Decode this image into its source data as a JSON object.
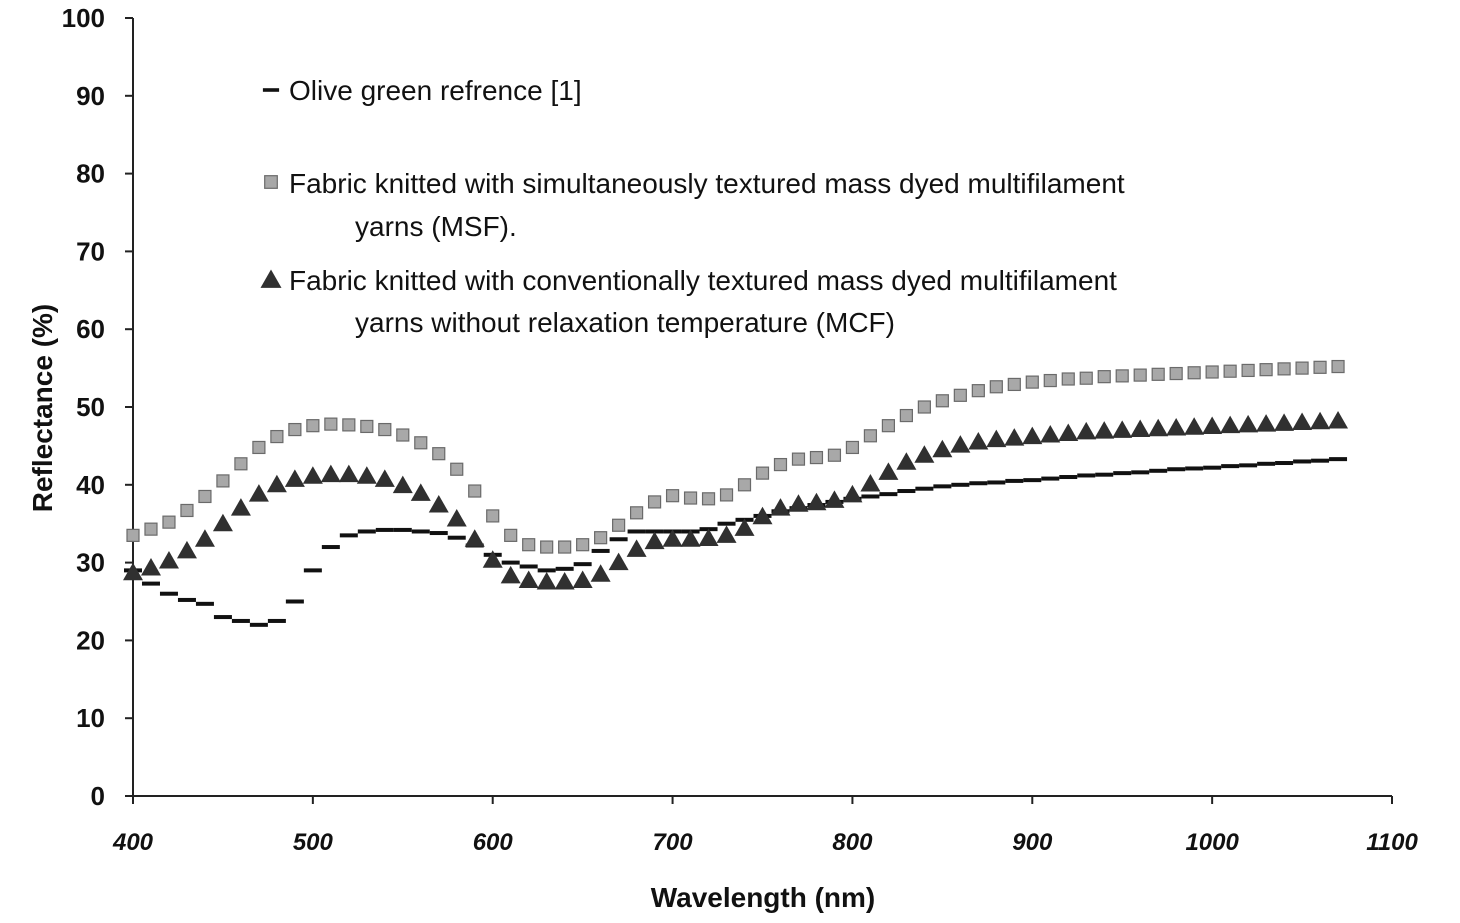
{
  "chart_data": {
    "type": "scatter",
    "xlabel": "Wavelength (nm)",
    "ylabel": "Reflectance (%)",
    "xlim": [
      400,
      1100
    ],
    "ylim": [
      0,
      100
    ],
    "xticks": [
      400,
      500,
      600,
      700,
      800,
      900,
      1000,
      1100
    ],
    "yticks": [
      0,
      10,
      20,
      30,
      40,
      50,
      60,
      70,
      80,
      90,
      100
    ],
    "grid": false,
    "legend_position": "top-left inside plot",
    "series": [
      {
        "name": "Olive green refrence [1]",
        "legend_lines": [
          "Olive green refrence [1]"
        ],
        "marker": "dash",
        "color": "#111111",
        "x": [
          400,
          410,
          420,
          430,
          440,
          450,
          460,
          470,
          480,
          490,
          500,
          510,
          520,
          530,
          540,
          550,
          560,
          570,
          580,
          590,
          600,
          610,
          620,
          630,
          640,
          650,
          660,
          670,
          680,
          690,
          700,
          710,
          720,
          730,
          740,
          750,
          760,
          770,
          780,
          790,
          800,
          810,
          820,
          830,
          840,
          850,
          860,
          870,
          880,
          890,
          900,
          910,
          920,
          930,
          940,
          950,
          960,
          970,
          980,
          990,
          1000,
          1010,
          1020,
          1030,
          1040,
          1050,
          1060,
          1070
        ],
        "y": [
          29,
          27.3,
          26,
          25.2,
          24.7,
          23,
          22.5,
          22,
          22.5,
          25,
          29,
          32,
          33.5,
          34,
          34.2,
          34.2,
          34,
          33.8,
          33.2,
          32.2,
          31,
          30,
          29.5,
          29,
          29.2,
          29.8,
          31.5,
          33,
          34,
          34,
          34,
          34,
          34.3,
          35,
          35.5,
          36,
          36.6,
          37,
          37.4,
          37.8,
          38.2,
          38.5,
          38.8,
          39.2,
          39.5,
          39.8,
          40,
          40.2,
          40.3,
          40.5,
          40.6,
          40.8,
          41,
          41.2,
          41.3,
          41.5,
          41.6,
          41.8,
          42,
          42.1,
          42.2,
          42.4,
          42.5,
          42.7,
          42.8,
          43,
          43.1,
          43.3
        ]
      },
      {
        "name": "Fabric knitted with simultaneously textured mass dyed multifilament yarns (MSF).",
        "legend_lines": [
          "Fabric knitted with simultaneously textured mass dyed multifilament",
          "yarns (MSF)."
        ],
        "marker": "square",
        "color": "#a8a8a8",
        "x": [
          400,
          410,
          420,
          430,
          440,
          450,
          460,
          470,
          480,
          490,
          500,
          510,
          520,
          530,
          540,
          550,
          560,
          570,
          580,
          590,
          600,
          610,
          620,
          630,
          640,
          650,
          660,
          670,
          680,
          690,
          700,
          710,
          720,
          730,
          740,
          750,
          760,
          770,
          780,
          790,
          800,
          810,
          820,
          830,
          840,
          850,
          860,
          870,
          880,
          890,
          900,
          910,
          920,
          930,
          940,
          950,
          960,
          970,
          980,
          990,
          1000,
          1010,
          1020,
          1030,
          1040,
          1050,
          1060,
          1070
        ],
        "y": [
          33.5,
          34.3,
          35.2,
          36.7,
          38.5,
          40.5,
          42.7,
          44.8,
          46.2,
          47.1,
          47.6,
          47.8,
          47.7,
          47.5,
          47.1,
          46.4,
          45.4,
          44,
          42,
          39.2,
          36,
          33.5,
          32.3,
          32,
          32,
          32.3,
          33.2,
          34.8,
          36.4,
          37.8,
          38.6,
          38.3,
          38.2,
          38.7,
          40,
          41.5,
          42.6,
          43.3,
          43.5,
          43.8,
          44.8,
          46.3,
          47.6,
          48.9,
          50,
          50.8,
          51.5,
          52.1,
          52.6,
          52.9,
          53.2,
          53.4,
          53.6,
          53.7,
          53.9,
          54,
          54.1,
          54.2,
          54.3,
          54.4,
          54.5,
          54.6,
          54.7,
          54.8,
          54.9,
          55,
          55.1,
          55.2
        ]
      },
      {
        "name": "Fabric knitted with conventionally textured mass dyed multifilament yarns without relaxation temperature (MCF)",
        "legend_lines": [
          "Fabric knitted with conventionally textured mass dyed multifilament",
          "yarns without relaxation temperature (MCF)"
        ],
        "marker": "triangle",
        "color": "#303030",
        "x": [
          400,
          410,
          420,
          430,
          440,
          450,
          460,
          470,
          480,
          490,
          500,
          510,
          520,
          530,
          540,
          550,
          560,
          570,
          580,
          590,
          600,
          610,
          620,
          630,
          640,
          650,
          660,
          670,
          680,
          690,
          700,
          710,
          720,
          730,
          740,
          750,
          760,
          770,
          780,
          790,
          800,
          810,
          820,
          830,
          840,
          850,
          860,
          870,
          880,
          890,
          900,
          910,
          920,
          930,
          940,
          950,
          960,
          970,
          980,
          990,
          1000,
          1010,
          1020,
          1030,
          1040,
          1050,
          1060,
          1070
        ],
        "y": [
          28.7,
          29.3,
          30.2,
          31.5,
          33,
          35,
          37,
          38.8,
          40,
          40.7,
          41.1,
          41.3,
          41.3,
          41.1,
          40.7,
          39.9,
          38.9,
          37.4,
          35.6,
          33,
          30.3,
          28.3,
          27.7,
          27.5,
          27.5,
          27.7,
          28.5,
          30,
          31.7,
          32.7,
          33,
          33,
          33.1,
          33.5,
          34.4,
          35.9,
          37,
          37.5,
          37.7,
          38,
          38.7,
          40.1,
          41.6,
          42.9,
          43.8,
          44.5,
          45.1,
          45.5,
          45.8,
          46,
          46.2,
          46.4,
          46.6,
          46.8,
          46.9,
          47,
          47.1,
          47.2,
          47.3,
          47.4,
          47.5,
          47.6,
          47.7,
          47.8,
          47.9,
          48,
          48.1,
          48.2
        ]
      }
    ]
  }
}
